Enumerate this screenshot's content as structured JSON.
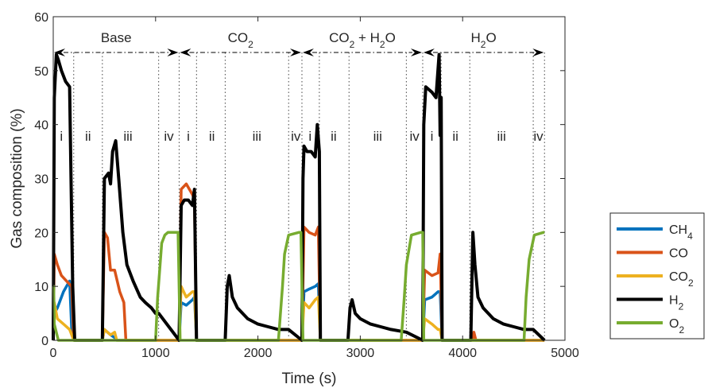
{
  "chart_data": {
    "type": "line",
    "xlabel": "Time (s)",
    "ylabel": "Gas composition (%)",
    "xlim": [
      0,
      5000
    ],
    "ylim": [
      0,
      60
    ],
    "xticks": [
      0,
      1000,
      2000,
      3000,
      4000,
      5000
    ],
    "yticks": [
      0,
      10,
      20,
      30,
      40,
      50,
      60
    ],
    "grid": false,
    "legend_position": "right",
    "phase_boundaries": [
      0,
      200,
      480,
      1030,
      1230,
      1400,
      1680,
      2300,
      2430,
      2600,
      2890,
      3450,
      3610,
      3790,
      4070,
      4690,
      4800
    ],
    "campaign_boundaries": [
      0,
      1230,
      2430,
      3610,
      4800
    ],
    "campaigns": [
      {
        "base": "Base",
        "sub": ""
      },
      {
        "base": "CO",
        "sub": "2",
        "suffix": ""
      },
      {
        "base": "CO",
        "sub": "2",
        "suffix": " + H",
        "sub2": "2",
        "suffix2": "O"
      },
      {
        "base": "H",
        "sub": "2",
        "suffix": "O"
      }
    ],
    "phase_labels": [
      {
        "label": "i",
        "x": 80
      },
      {
        "label": "ii",
        "x": 340
      },
      {
        "label": "iii",
        "x": 730
      },
      {
        "label": "iv",
        "x": 1130
      },
      {
        "label": "i",
        "x": 1320
      },
      {
        "label": "ii",
        "x": 1550
      },
      {
        "label": "iii",
        "x": 1990
      },
      {
        "label": "iv",
        "x": 2370
      },
      {
        "label": "i",
        "x": 2510
      },
      {
        "label": "ii",
        "x": 2740
      },
      {
        "label": "iii",
        "x": 3170
      },
      {
        "label": "iv",
        "x": 3530
      },
      {
        "label": "i",
        "x": 3700
      },
      {
        "label": "ii",
        "x": 3930
      },
      {
        "label": "iii",
        "x": 4380
      },
      {
        "label": "iv",
        "x": 4740
      }
    ],
    "series": [
      {
        "name": "CH",
        "sub": "4",
        "color": "#0072BD",
        "x": [
          0,
          10,
          40,
          100,
          160,
          180,
          200,
          480,
          500,
          560,
          600,
          620,
          1230,
          1250,
          1300,
          1360,
          1380,
          1400,
          2430,
          2450,
          2500,
          2560,
          2590,
          2610,
          3610,
          3630,
          3700,
          3760,
          3780,
          3800,
          4800
        ],
        "y": [
          0,
          5,
          6,
          9,
          11,
          2,
          0,
          0,
          2,
          1,
          0.5,
          0,
          0,
          7,
          6.5,
          7.5,
          8,
          0,
          0,
          9,
          9.5,
          10,
          10.5,
          0,
          0,
          7.5,
          8,
          9,
          9,
          0,
          0
        ]
      },
      {
        "name": "CO",
        "sub": "",
        "color": "#D95319",
        "x": [
          0,
          10,
          40,
          80,
          130,
          180,
          200,
          480,
          500,
          530,
          560,
          600,
          650,
          690,
          710,
          1230,
          1250,
          1300,
          1360,
          1380,
          1400,
          2430,
          2450,
          2500,
          2560,
          2590,
          2610,
          3610,
          3630,
          3700,
          3760,
          3780,
          3800,
          4100,
          4110,
          4130,
          4800
        ],
        "y": [
          0,
          16,
          14,
          12,
          11,
          10,
          0,
          0,
          20,
          19,
          13,
          13,
          9,
          7,
          0,
          0,
          28,
          29,
          27,
          26,
          0,
          0,
          21,
          20,
          19.5,
          21,
          0,
          0,
          13,
          12,
          12.5,
          16,
          0,
          0,
          1.5,
          0,
          0
        ]
      },
      {
        "name": "CO",
        "sub": "2",
        "color": "#EDB120",
        "x": [
          0,
          10,
          40,
          100,
          160,
          200,
          480,
          500,
          560,
          600,
          620,
          1230,
          1250,
          1300,
          1360,
          1380,
          1400,
          2430,
          2450,
          2500,
          2560,
          2590,
          2610,
          3610,
          3630,
          3700,
          3760,
          3780,
          3800,
          4800
        ],
        "y": [
          0,
          7,
          4,
          3,
          2,
          0,
          0,
          2,
          1,
          1.5,
          0,
          0,
          10,
          8,
          9,
          9,
          0,
          0,
          7,
          6,
          7.5,
          8,
          0,
          0,
          4,
          3,
          2,
          2,
          0,
          0
        ]
      },
      {
        "name": "H",
        "sub": "2",
        "color": "#000000",
        "x": [
          0,
          10,
          30,
          50,
          80,
          120,
          160,
          190,
          210,
          480,
          500,
          540,
          560,
          580,
          610,
          640,
          680,
          720,
          780,
          850,
          900,
          960,
          1000,
          1030,
          1230,
          1250,
          1280,
          1320,
          1360,
          1380,
          1400,
          1680,
          1700,
          1720,
          1750,
          1800,
          1900,
          2000,
          2100,
          2200,
          2300,
          2430,
          2440,
          2450,
          2480,
          2520,
          2560,
          2580,
          2600,
          2610,
          2880,
          2900,
          2920,
          2950,
          3000,
          3100,
          3200,
          3300,
          3450,
          3610,
          3620,
          3640,
          3700,
          3740,
          3770,
          3780,
          3790,
          3800,
          4080,
          4100,
          4120,
          4150,
          4200,
          4300,
          4400,
          4500,
          4600,
          4690,
          4800
        ],
        "y": [
          0,
          45,
          53,
          52,
          50,
          48,
          47,
          10,
          0,
          0,
          30,
          31,
          29,
          35,
          37,
          30,
          20,
          14,
          11,
          8,
          7,
          6,
          5,
          5,
          0,
          25,
          26,
          26,
          25,
          28,
          0,
          0,
          10,
          12,
          8,
          6,
          4,
          3,
          2.5,
          2,
          2,
          0,
          30,
          36,
          35,
          35,
          34,
          40,
          35,
          0,
          0,
          6,
          7.5,
          5,
          4,
          3,
          2.5,
          2,
          1.5,
          0,
          40,
          47,
          46,
          45,
          53,
          38,
          45,
          0,
          0,
          20,
          14,
          8,
          6,
          4,
          3,
          2.5,
          2,
          2,
          0
        ]
      },
      {
        "name": "O",
        "sub": "2",
        "color": "#77AC30",
        "x": [
          0,
          5,
          10,
          50,
          1000,
          1020,
          1060,
          1090,
          1120,
          1200,
          1220,
          1240,
          1300,
          2200,
          2240,
          2260,
          2300,
          2400,
          2420,
          2440,
          2500,
          3400,
          3430,
          3450,
          3500,
          3590,
          3610,
          3620,
          3700,
          4600,
          4620,
          4650,
          4700,
          4790,
          4800
        ],
        "y": [
          10,
          10,
          3,
          0,
          0,
          8,
          18,
          19.5,
          20,
          20,
          20,
          0,
          0,
          0,
          10,
          16,
          19.5,
          20,
          20,
          0,
          0,
          0,
          8,
          14,
          19.5,
          20,
          20,
          0,
          0,
          0,
          8,
          15,
          19.5,
          20,
          20
        ]
      }
    ]
  }
}
